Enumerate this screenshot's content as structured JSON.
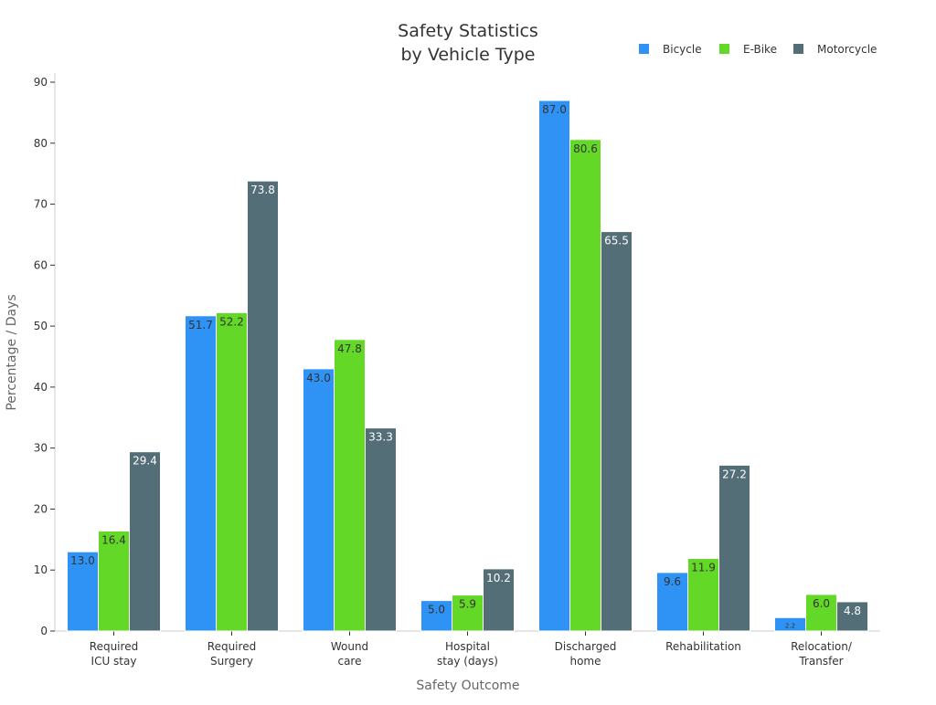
{
  "chart_data": {
    "type": "bar",
    "title": [
      "Safety Statistics",
      "by Vehicle Type"
    ],
    "xlabel": "Safety Outcome",
    "ylabel": "Percentage / Days",
    "ylim": [
      0,
      90
    ],
    "yticks": [
      0,
      10,
      20,
      30,
      40,
      50,
      60,
      70,
      80,
      90
    ],
    "grid": false,
    "legend": "top-right",
    "categories": [
      [
        "Required",
        "ICU stay"
      ],
      [
        "Required",
        "Surgery"
      ],
      [
        "Wound",
        "care"
      ],
      [
        "Hospital",
        "stay (days)"
      ],
      [
        "Discharged",
        "home"
      ],
      [
        "Rehabilitation"
      ],
      [
        "Relocation/",
        "Transfer"
      ]
    ],
    "series": [
      {
        "name": "Bicycle",
        "color": "#2F93F5",
        "label_color": "#333333",
        "values": [
          13.0,
          51.7,
          43.0,
          5.0,
          87.0,
          9.6,
          2.2
        ]
      },
      {
        "name": "E-Bike",
        "color": "#63D826",
        "label_color": "#333333",
        "values": [
          16.4,
          52.2,
          47.8,
          5.9,
          80.6,
          11.9,
          6.0
        ]
      },
      {
        "name": "Motorcycle",
        "color": "#546E78",
        "label_color": "#ffffff",
        "values": [
          29.4,
          73.8,
          33.3,
          10.2,
          65.5,
          27.2,
          4.8
        ]
      }
    ]
  }
}
